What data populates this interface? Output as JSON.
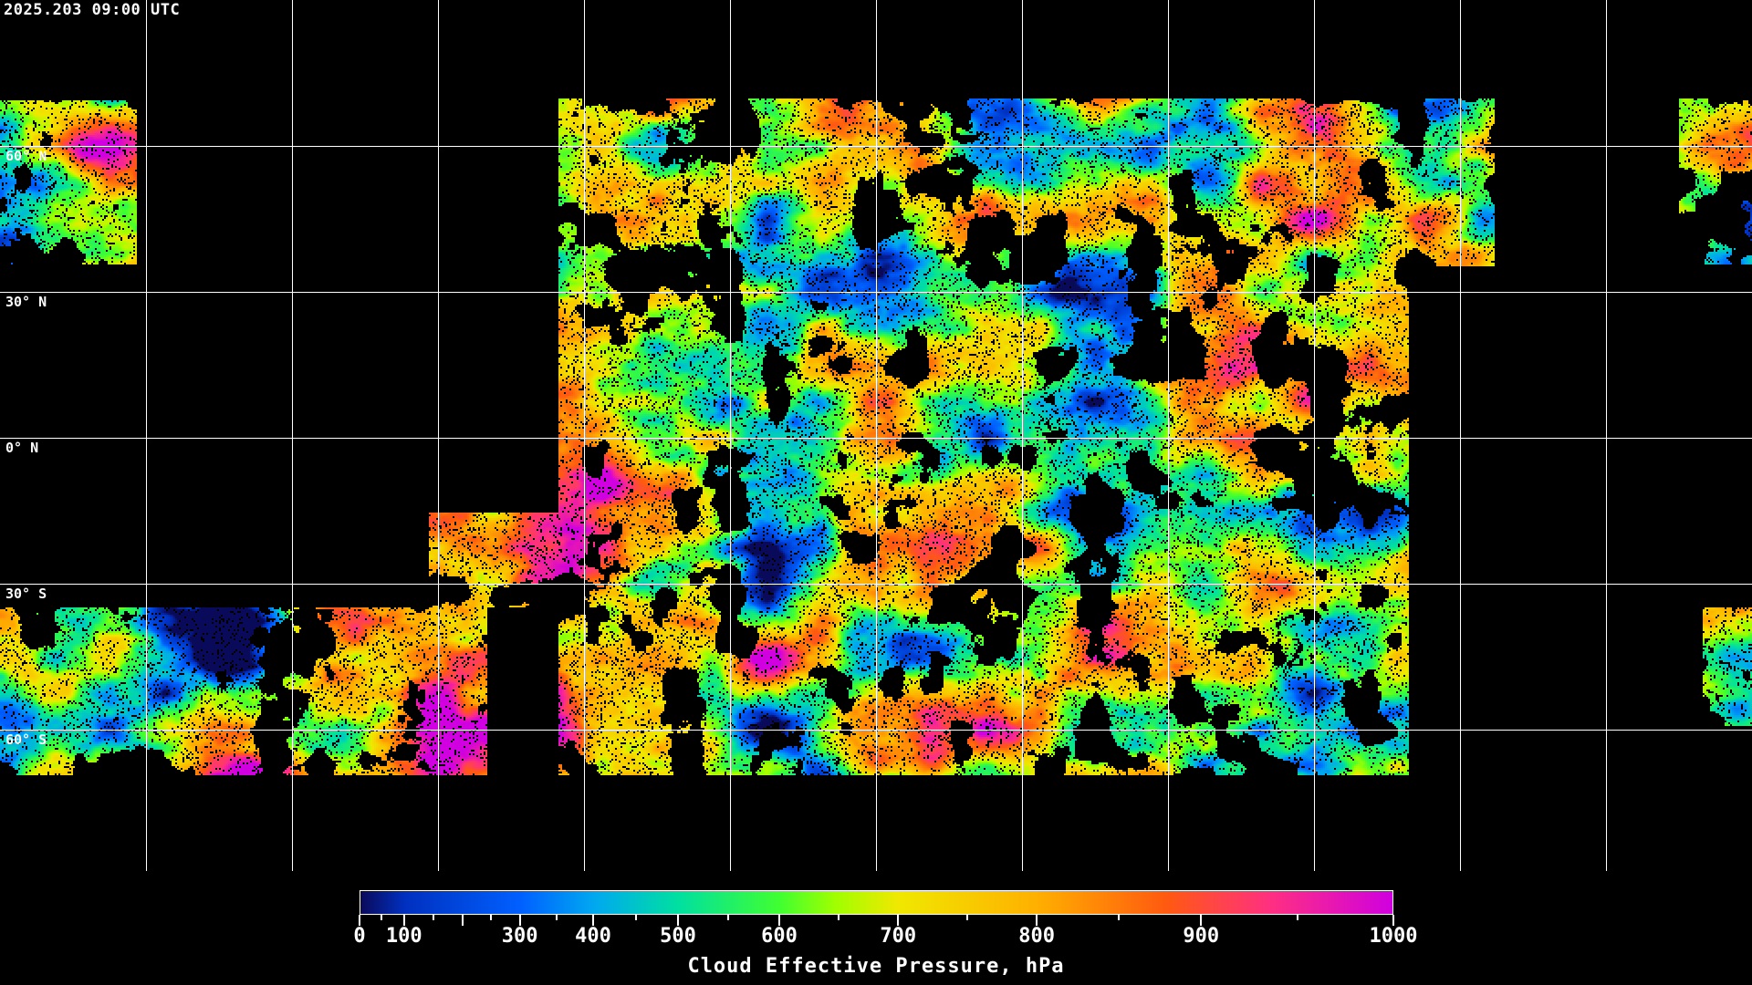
{
  "title": "2025.203 09:00 UTC",
  "map": {
    "projection": "equirectangular",
    "grid_spacing_deg": 30,
    "lat_labels": [
      "60° N",
      "30° N",
      "0° N",
      "30° S",
      "60° S"
    ],
    "background": "#000000",
    "coastline_color": "#ffffff"
  },
  "colorbar": {
    "title": "Cloud Effective Pressure, hPa",
    "range": [
      0,
      1000
    ],
    "tick_labels": [
      "0",
      "100",
      "300",
      "400",
      "500",
      "600",
      "700",
      "800",
      "900",
      "1000"
    ],
    "colors": [
      "#0a0a5a",
      "#0030c0",
      "#0060ff",
      "#00a8f0",
      "#00e0a0",
      "#40ff30",
      "#a0ff00",
      "#f0e800",
      "#ffb000",
      "#ff5a10",
      "#ff3080",
      "#d000e0"
    ]
  }
}
